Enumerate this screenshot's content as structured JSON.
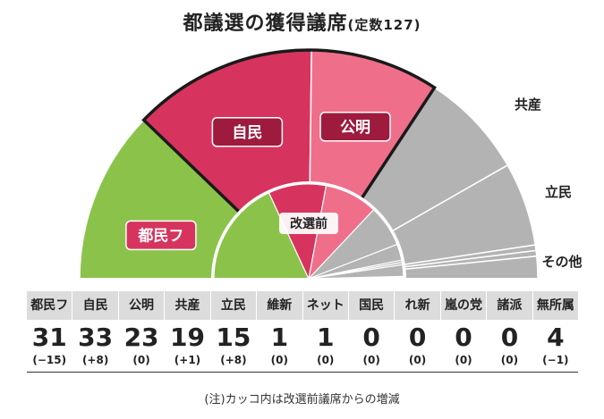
{
  "title": "都議選の獲得議席",
  "subtitle": "(定数127)",
  "chart_data": {
    "type": "semi-donut",
    "total_seats": 127,
    "outer_ring_label": "",
    "inner_ring_label": "改選前",
    "wedge_order": [
      "都民フ",
      "自民",
      "公明",
      "共産",
      "立民",
      "維新",
      "ネット",
      "国民",
      "れ新",
      "嵐の党",
      "諸派",
      "無所属"
    ],
    "external_labels": [
      "共産",
      "立民",
      "その他"
    ],
    "parties": [
      {
        "name": "都民フ",
        "seats": 31,
        "change": "(−15)",
        "previous": 46,
        "color": "#8bc34a",
        "label_style": "box-red",
        "in_chart_label": "都民フ"
      },
      {
        "name": "自民",
        "seats": 33,
        "change": "(+8)",
        "previous": 25,
        "color": "#d6345e",
        "label_style": "box-darkred",
        "in_chart_label": "自民"
      },
      {
        "name": "公明",
        "seats": 23,
        "change": "(0)",
        "previous": 23,
        "color": "#ef6f8a",
        "label_style": "box-darkred",
        "in_chart_label": "公明"
      },
      {
        "name": "共産",
        "seats": 19,
        "change": "(+1)",
        "previous": 18,
        "color": "#b3b3b3",
        "label_style": "external",
        "in_chart_label": ""
      },
      {
        "name": "立民",
        "seats": 15,
        "change": "(+8)",
        "previous": 7,
        "color": "#b3b3b3",
        "label_style": "external",
        "in_chart_label": ""
      },
      {
        "name": "維新",
        "seats": 1,
        "change": "(0)",
        "previous": 1,
        "color": "#b3b3b3",
        "label_style": "none",
        "in_chart_label": ""
      },
      {
        "name": "ネット",
        "seats": 1,
        "change": "(0)",
        "previous": 1,
        "color": "#b3b3b3",
        "label_style": "none",
        "in_chart_label": ""
      },
      {
        "name": "国民",
        "seats": 0,
        "change": "(0)",
        "previous": 0,
        "color": "#b3b3b3",
        "label_style": "none",
        "in_chart_label": ""
      },
      {
        "name": "れ新",
        "seats": 0,
        "change": "(0)",
        "previous": 0,
        "color": "#b3b3b3",
        "label_style": "none",
        "in_chart_label": ""
      },
      {
        "name": "嵐の党",
        "seats": 0,
        "change": "(0)",
        "previous": 0,
        "color": "#b3b3b3",
        "label_style": "none",
        "in_chart_label": ""
      },
      {
        "name": "諸派",
        "seats": 0,
        "change": "(0)",
        "previous": 0,
        "color": "#b3b3b3",
        "label_style": "none",
        "in_chart_label": ""
      },
      {
        "name": "無所属",
        "seats": 4,
        "change": "(−1)",
        "previous": 5,
        "color": "#b3b3b3",
        "label_style": "none",
        "in_chart_label": ""
      }
    ],
    "highlighted_parties": [
      "自民",
      "公明"
    ]
  },
  "note": "(注)カッコ内は改選前議席からの増減"
}
